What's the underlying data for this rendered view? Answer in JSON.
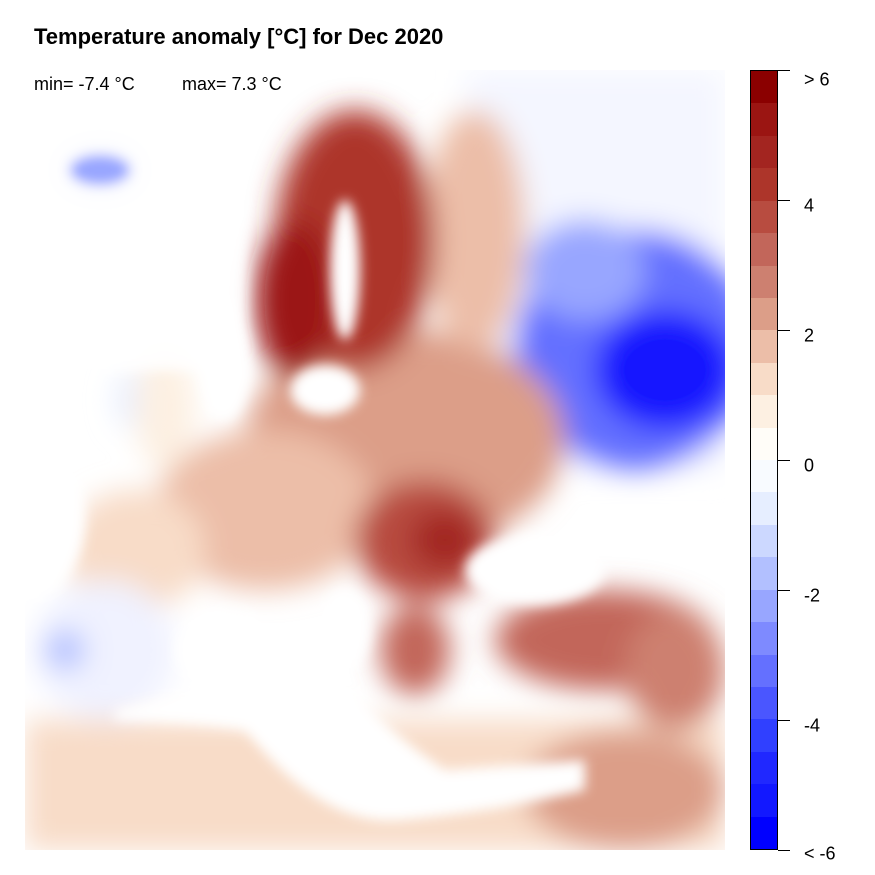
{
  "title": "Temperature anomaly [°C] for Dec 2020",
  "stats": {
    "min": "min= -7.4 °C",
    "max": "max= 7.3 °C"
  },
  "colorbar": {
    "range": [
      -6,
      6
    ],
    "step": 0.5,
    "tick_labels": [
      "> 6",
      "4",
      "2",
      "0",
      "-2",
      "-4",
      "< -6"
    ],
    "tick_values": [
      6,
      4,
      2,
      0,
      -2,
      -4,
      -6
    ],
    "colors_top_to_bottom": [
      "#8b0000",
      "#9b1512",
      "#a32520",
      "#ad352a",
      "#b84c40",
      "#c2665a",
      "#cd8070",
      "#dc9e88",
      "#ecbea8",
      "#f8dcc8",
      "#fdf0e2",
      "#fffdf8",
      "#f8fbff",
      "#e6eeff",
      "#ccd8ff",
      "#b2c0ff",
      "#98a6ff",
      "#7e8aff",
      "#6470ff",
      "#4a56ff",
      "#3040ff",
      "#2028ff",
      "#1218ff",
      "#0000ff"
    ]
  }
}
